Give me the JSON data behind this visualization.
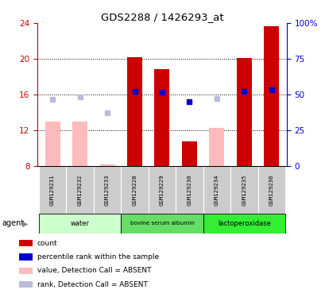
{
  "title": "GDS2288 / 1426293_at",
  "samples": [
    "GSM129231",
    "GSM129232",
    "GSM129233",
    "GSM129228",
    "GSM129229",
    "GSM129230",
    "GSM129234",
    "GSM129235",
    "GSM129236"
  ],
  "groups": [
    {
      "label": "water",
      "color": "#ccffcc",
      "samples": [
        0,
        1,
        2
      ]
    },
    {
      "label": "bovine serum albumin",
      "color": "#66dd66",
      "samples": [
        3,
        4,
        5
      ]
    },
    {
      "label": "lactoperoxidase",
      "color": "#33ee33",
      "samples": [
        6,
        7,
        8
      ]
    }
  ],
  "ylim_left": [
    8,
    24
  ],
  "ylim_right": [
    0,
    100
  ],
  "yticks_left": [
    8,
    12,
    16,
    20,
    24
  ],
  "yticks_right": [
    0,
    25,
    50,
    75,
    100
  ],
  "ytick_labels_right": [
    "0",
    "25",
    "50",
    "75",
    "100%"
  ],
  "red_bars": [
    null,
    null,
    null,
    20.2,
    18.8,
    10.8,
    null,
    20.1,
    23.6
  ],
  "pink_bars": [
    13.0,
    13.0,
    8.2,
    null,
    null,
    null,
    12.3,
    null,
    null
  ],
  "blue_squares": [
    null,
    null,
    null,
    16.4,
    16.3,
    15.2,
    null,
    16.4,
    16.5
  ],
  "light_blue_squares": [
    15.5,
    15.7,
    14.0,
    null,
    null,
    null,
    15.6,
    null,
    null
  ],
  "bar_bottom": 8,
  "bar_width": 0.55,
  "left_axis_color": "#cc0000",
  "right_axis_color": "#0000cc",
  "agent_label": "agent",
  "grid_lines": [
    12,
    16,
    20
  ],
  "legend_colors": [
    "#cc0000",
    "#0000cc",
    "#ffbbbb",
    "#bbbbdd"
  ],
  "legend_labels": [
    "count",
    "percentile rank within the sample",
    "value, Detection Call = ABSENT",
    "rank, Detection Call = ABSENT"
  ]
}
